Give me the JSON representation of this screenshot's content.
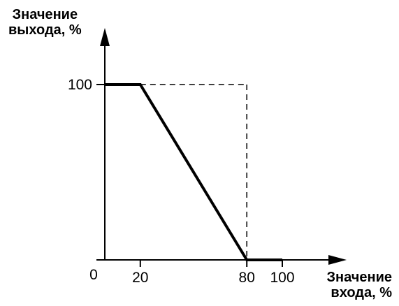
{
  "chart_data": {
    "type": "line",
    "ylabel_lines": [
      "Значение",
      "выхода, %"
    ],
    "xlabel_lines": [
      "Значение",
      "входа, %"
    ],
    "xlim": [
      0,
      100
    ],
    "ylim": [
      0,
      100
    ],
    "origin_label": "0",
    "x_ticks": [
      "20",
      "80",
      "100"
    ],
    "y_ticks": [
      "100"
    ],
    "series": [
      {
        "x": [
          0,
          20,
          80,
          100
        ],
        "y": [
          100,
          100,
          0,
          0
        ]
      }
    ],
    "guides": [
      {
        "x": [
          20,
          80
        ],
        "y": [
          100,
          100
        ]
      },
      {
        "x": [
          80,
          80
        ],
        "y": [
          100,
          0
        ]
      }
    ],
    "grid": false
  }
}
